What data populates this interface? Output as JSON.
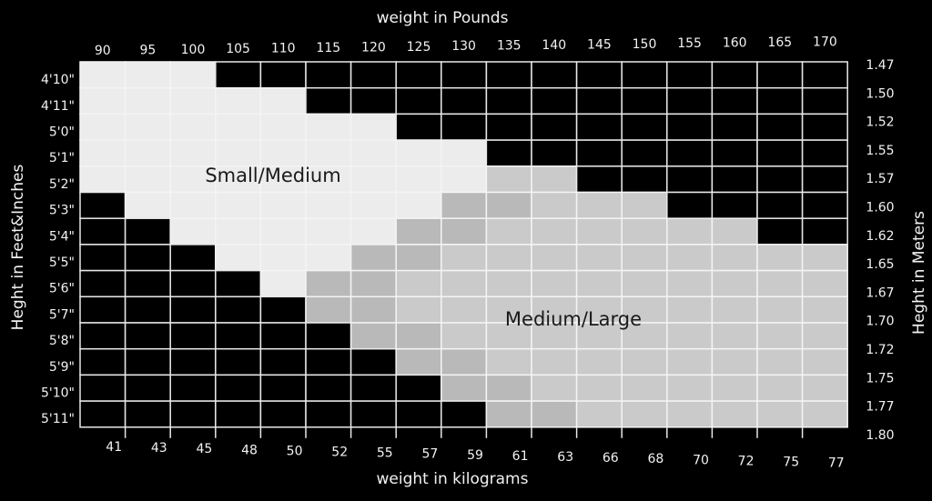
{
  "header": {
    "top_title": "weight in Pounds",
    "bottom_title": "weight in kilograms",
    "left_title": "Heght in Feet&Inches",
    "right_title": "Heght in Meters"
  },
  "pounds": [
    "90",
    "95",
    "100",
    "105",
    "110",
    "115",
    "120",
    "125",
    "130",
    "135",
    "140",
    "145",
    "150",
    "155",
    "160",
    "165",
    "170"
  ],
  "kilograms": [
    "41",
    "43",
    "45",
    "48",
    "50",
    "52",
    "55",
    "57",
    "59",
    "61",
    "63",
    "66",
    "68",
    "70",
    "72",
    "75",
    "77"
  ],
  "feet_inches": [
    "4'10\"",
    "4'11\"",
    "5'0\"",
    "5'1\"",
    "5'2\"",
    "5'3\"",
    "5'4\"",
    "5'5\"",
    "5'6\"",
    "5'7\"",
    "5'8\"",
    "5'9\"",
    "5'10\"",
    "5'11\""
  ],
  "meters": [
    "1.47",
    "1.50",
    "1.52",
    "1.55",
    "1.57",
    "1.60",
    "1.62",
    "1.65",
    "1.67",
    "1.70",
    "1.72",
    "1.75",
    "1.77",
    "1.80"
  ],
  "regions": [
    "Small/Medium",
    "Medium/Large"
  ]
}
